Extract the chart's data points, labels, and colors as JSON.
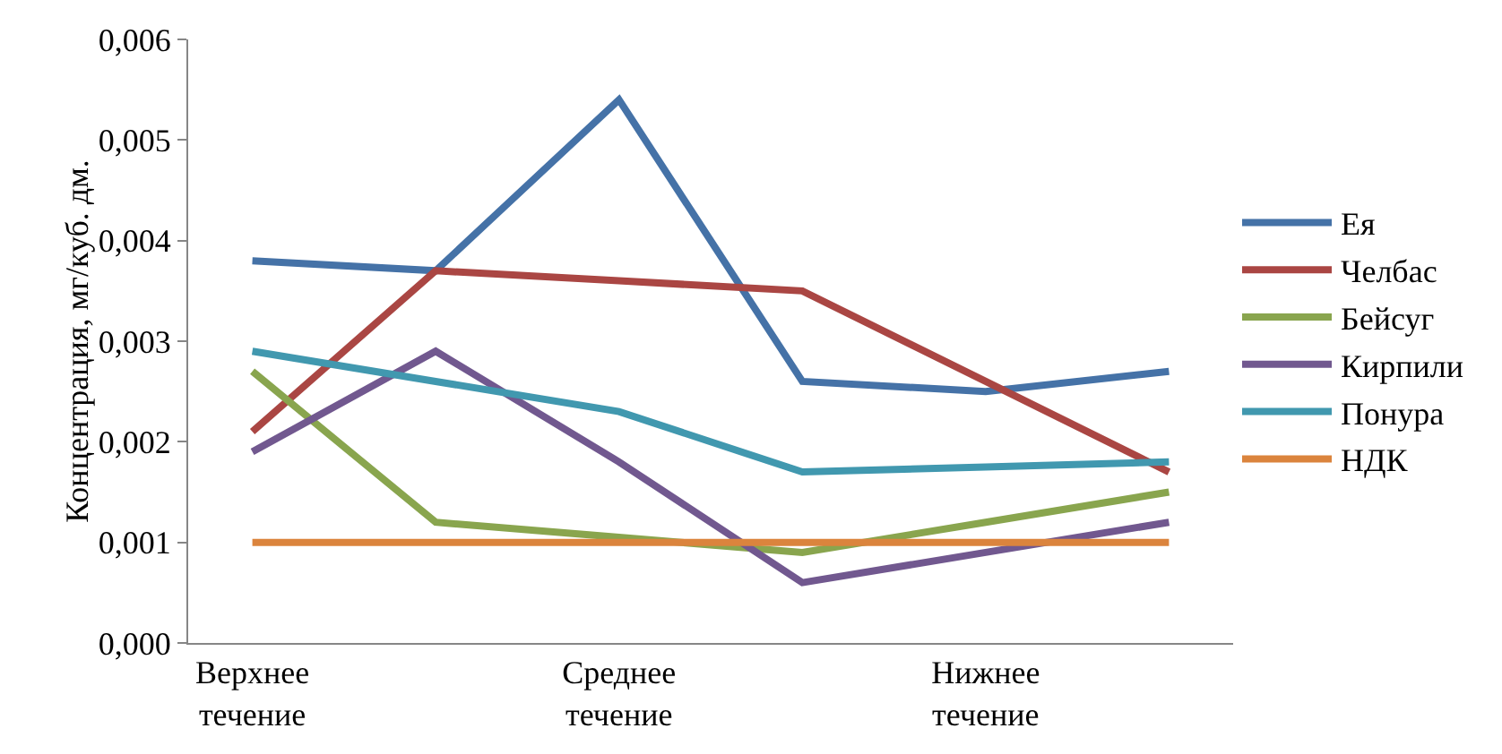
{
  "chart_data": {
    "type": "line",
    "ylabel": "Концентрация, мг/куб. дм.",
    "categories": [
      "Верхнее течение",
      null,
      "Среднее течение",
      null,
      "Нижнее течение",
      null
    ],
    "series": [
      {
        "name": "Ея",
        "color": "#4572a7",
        "values": [
          0.0038,
          0.0037,
          0.0054,
          0.0026,
          0.0025,
          0.0027
        ]
      },
      {
        "name": "Челбас",
        "color": "#aa4643",
        "values": [
          0.0021,
          0.0037,
          0.0036,
          0.0035,
          0.0026,
          0.0017
        ]
      },
      {
        "name": "Бейсуг",
        "color": "#89a54e",
        "values": [
          0.0027,
          0.0012,
          0.00105,
          0.0009,
          0.0012,
          0.0015
        ]
      },
      {
        "name": "Кирпили",
        "color": "#71588f",
        "values": [
          0.0019,
          0.0029,
          0.0018,
          0.0006,
          0.0009,
          0.0012
        ]
      },
      {
        "name": "Понура",
        "color": "#4198af",
        "values": [
          0.0029,
          0.0026,
          0.0023,
          0.0017,
          0.00175,
          0.0018
        ]
      },
      {
        "name": "НДК",
        "color": "#db843d",
        "values": [
          0.001,
          0.001,
          0.001,
          0.001,
          0.001,
          0.001
        ]
      }
    ],
    "ylim": [
      0,
      0.006
    ],
    "yticks": [
      {
        "value": 0,
        "label": "0,000"
      },
      {
        "value": 0.001,
        "label": "0,001"
      },
      {
        "value": 0.002,
        "label": "0,002"
      },
      {
        "value": 0.003,
        "label": "0,003"
      },
      {
        "value": 0.004,
        "label": "0,004"
      },
      {
        "value": 0.005,
        "label": "0,005"
      },
      {
        "value": 0.006,
        "label": "0,006"
      }
    ],
    "grid": false,
    "legend": "right",
    "marker": "none",
    "line_style": "solid"
  }
}
